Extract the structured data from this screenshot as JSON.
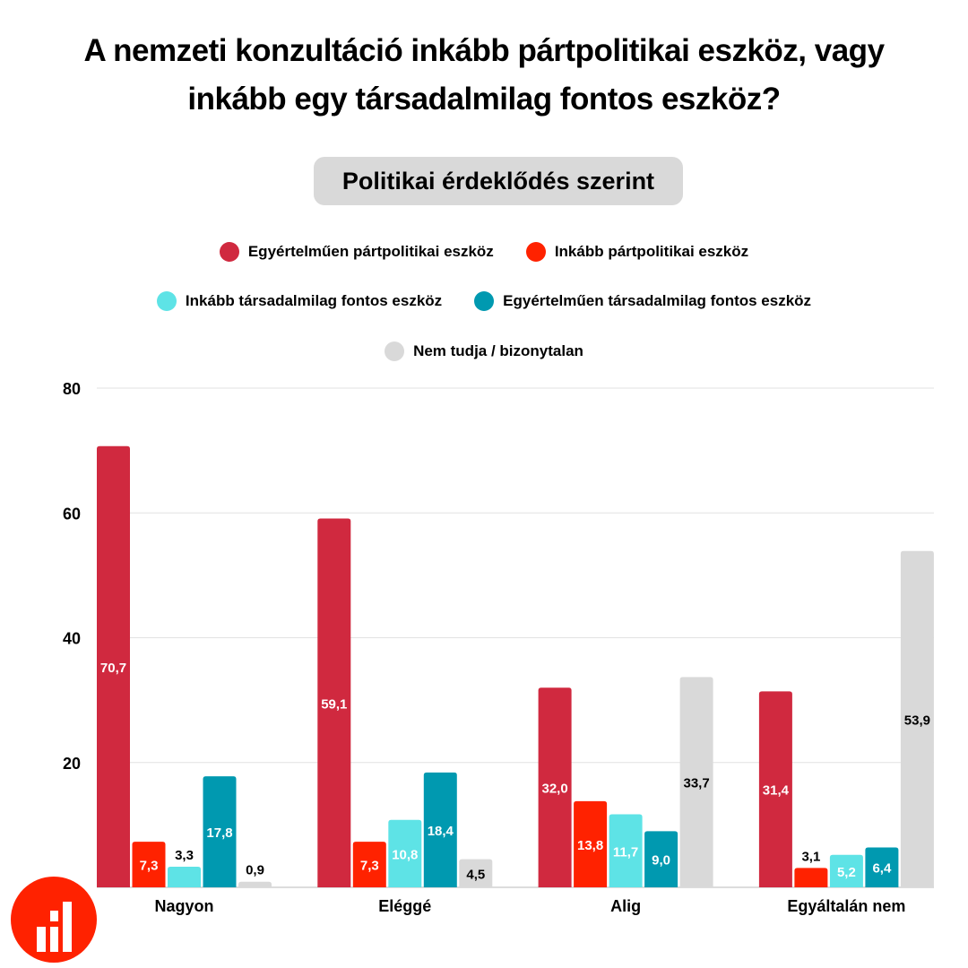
{
  "title_line1": "A nemzeti konzultáció inkább pártpolitikai eszköz, vagy",
  "title_line2": "inkább egy társadalmilag fontos eszköz?",
  "subtitle": "Politikai érdeklődés szerint",
  "chart_data": {
    "type": "bar",
    "title": "A nemzeti konzultáció inkább pártpolitikai eszköz, vagy inkább egy társadalmilag fontos eszköz?",
    "subtitle": "Politikai érdeklődés szerint",
    "categories": [
      "Nagyon",
      "Eléggé",
      "Alig",
      "Egyáltalán nem"
    ],
    "series": [
      {
        "name": "Egyértelműen pártpolitikai eszköz",
        "color": "#d0293f",
        "values": [
          70.7,
          59.1,
          32.0,
          31.4
        ],
        "labels": [
          "70,7",
          "59,1",
          "32,0",
          "31,4"
        ]
      },
      {
        "name": "Inkább pártpolitikai eszköz",
        "color": "#ff2200",
        "values": [
          7.3,
          7.3,
          13.8,
          3.1
        ],
        "labels": [
          "7,3",
          "7,3",
          "13,8",
          "3,1"
        ]
      },
      {
        "name": "Inkább társadalmilag fontos eszköz",
        "color": "#5ee3e6",
        "values": [
          3.3,
          10.8,
          11.7,
          5.2
        ],
        "labels": [
          "3,3",
          "10,8",
          "11,7",
          "5,2"
        ]
      },
      {
        "name": "Egyértelműen társadalmilag fontos eszköz",
        "color": "#0099b0",
        "values": [
          17.8,
          18.4,
          9.0,
          6.4
        ],
        "labels": [
          "17,8",
          "18,4",
          "9,0",
          "6,4"
        ]
      },
      {
        "name": "Nem tudja / bizonytalan",
        "color": "#d9d9d9",
        "values": [
          0.9,
          4.5,
          33.7,
          53.9
        ],
        "labels": [
          "0,9",
          "4,5",
          "33,7",
          "53,9"
        ]
      }
    ],
    "ylim": [
      0,
      80
    ],
    "yticks": [
      "0",
      "20",
      "40",
      "60",
      "80"
    ],
    "ytick_values": [
      0,
      20,
      40,
      60,
      80
    ],
    "grid": true,
    "legend_placement": "top"
  }
}
